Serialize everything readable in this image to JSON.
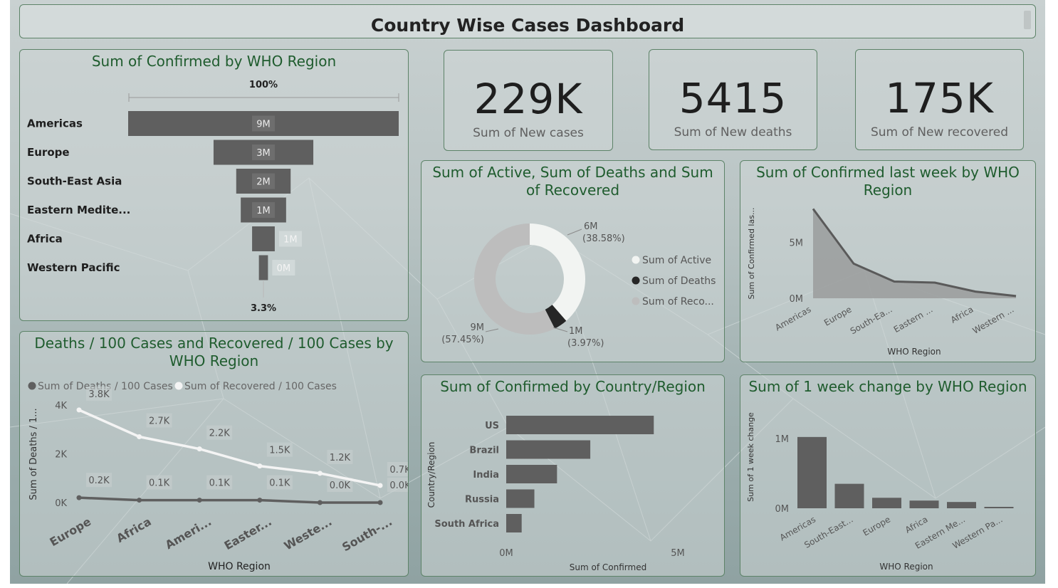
{
  "header": {
    "title": "Country Wise Cases Dashboard"
  },
  "kpis": [
    {
      "value": "229K",
      "label": "Sum of New cases"
    },
    {
      "value": "5415",
      "label": "Sum of New deaths"
    },
    {
      "value": "175K",
      "label": "Sum of New recovered"
    }
  ],
  "colors": {
    "bar": "#5f5f5f",
    "line_light": "#f4f4f4",
    "line_dark": "#5f5f5f",
    "donut_active": "#f2f4f2",
    "donut_deaths": "#262626",
    "donut_recovered": "#bdbdbd",
    "title": "#1f5c2e"
  },
  "chart_data": [
    {
      "id": "funnel",
      "type": "funnel",
      "title": "Sum of Confirmed by WHO Region",
      "top_label": "100%",
      "bottom_label": "3.3%",
      "categories": [
        "Americas",
        "Europe",
        "South-East Asia",
        "Eastern Medite...",
        "Africa",
        "Western Pacific"
      ],
      "values": [
        8.95,
        3.3,
        1.8,
        1.5,
        0.75,
        0.3
      ],
      "labels": [
        "9M",
        "3M",
        "2M",
        "1M",
        "1M",
        "0M"
      ]
    },
    {
      "id": "donut",
      "type": "pie",
      "title": "Sum of Active, Sum of Deaths and Sum of Recovered",
      "series": [
        {
          "name": "Sum of Active",
          "percent": 38.58,
          "label": "6M",
          "pct_label": "(38.58%)"
        },
        {
          "name": "Sum of Deaths",
          "percent": 3.97,
          "label": "1M",
          "pct_label": "(3.97%)"
        },
        {
          "name": "Sum of Reco...",
          "percent": 57.45,
          "label": "9M",
          "pct_label": "(57.45%)"
        }
      ]
    },
    {
      "id": "area",
      "type": "area",
      "title": "Sum of Confirmed last week by WHO Region",
      "xlabel": "WHO Region",
      "ylabel": "Sum of Confirmed las...",
      "categories": [
        "Americas",
        "Europe",
        "South-Ea...",
        "Eastern ...",
        "Africa",
        "Western ..."
      ],
      "values": [
        8.0,
        3.1,
        1.5,
        1.4,
        0.6,
        0.2
      ],
      "yticks": [
        {
          "v": 0,
          "label": "0M"
        },
        {
          "v": 5,
          "label": "5M"
        }
      ],
      "ylim": [
        0,
        8.6
      ]
    },
    {
      "id": "line",
      "type": "line",
      "title": "Deaths / 100 Cases and Recovered / 100 Cases by WHO Region",
      "xlabel": "WHO Region",
      "ylabel": "Sum of Deaths / 1...",
      "categories": [
        "Europe",
        "Africa",
        "Ameri...",
        "Easter...",
        "Weste...",
        "South-..."
      ],
      "series": [
        {
          "name": "Sum of Deaths / 100 Cases",
          "values": [
            0.2,
            0.1,
            0.1,
            0.1,
            0.0,
            0.0
          ],
          "labels": [
            "0.2K",
            "0.1K",
            "0.1K",
            "0.1K",
            "0.0K",
            "0.0K"
          ]
        },
        {
          "name": "Sum of Recovered / 100 Cases",
          "values": [
            3.8,
            2.7,
            2.2,
            1.5,
            1.2,
            0.7
          ],
          "labels": [
            "3.8K",
            "2.7K",
            "2.2K",
            "1.5K",
            "1.2K",
            "0.7K"
          ]
        }
      ],
      "yticks": [
        {
          "v": 0,
          "label": "0K"
        },
        {
          "v": 2,
          "label": "2K"
        },
        {
          "v": 4,
          "label": "4K"
        }
      ],
      "ylim": [
        0,
        4
      ]
    },
    {
      "id": "hbar",
      "type": "bar",
      "title": "Sum of Confirmed by Country/Region",
      "xlabel": "Sum of Confirmed",
      "ylabel": "Country/Region",
      "categories": [
        "US",
        "Brazil",
        "India",
        "Russia",
        "South Africa"
      ],
      "values": [
        4.3,
        2.45,
        1.48,
        0.82,
        0.45
      ],
      "xticks": [
        {
          "v": 0,
          "label": "0M"
        },
        {
          "v": 5,
          "label": "5M"
        }
      ],
      "xlim": [
        0,
        5
      ]
    },
    {
      "id": "vbar",
      "type": "bar",
      "title": "Sum of 1 week change by WHO Region",
      "xlabel": "WHO Region",
      "ylabel": "Sum of 1 week change",
      "categories": [
        "Americas",
        "South-East...",
        "Europe",
        "Africa",
        "Eastern Me...",
        "Western Pa..."
      ],
      "values": [
        1.02,
        0.35,
        0.15,
        0.11,
        0.09,
        0.02
      ],
      "yticks": [
        {
          "v": 0,
          "label": "0M"
        },
        {
          "v": 1,
          "label": "1M"
        }
      ],
      "ylim": [
        0,
        1.1
      ]
    }
  ]
}
